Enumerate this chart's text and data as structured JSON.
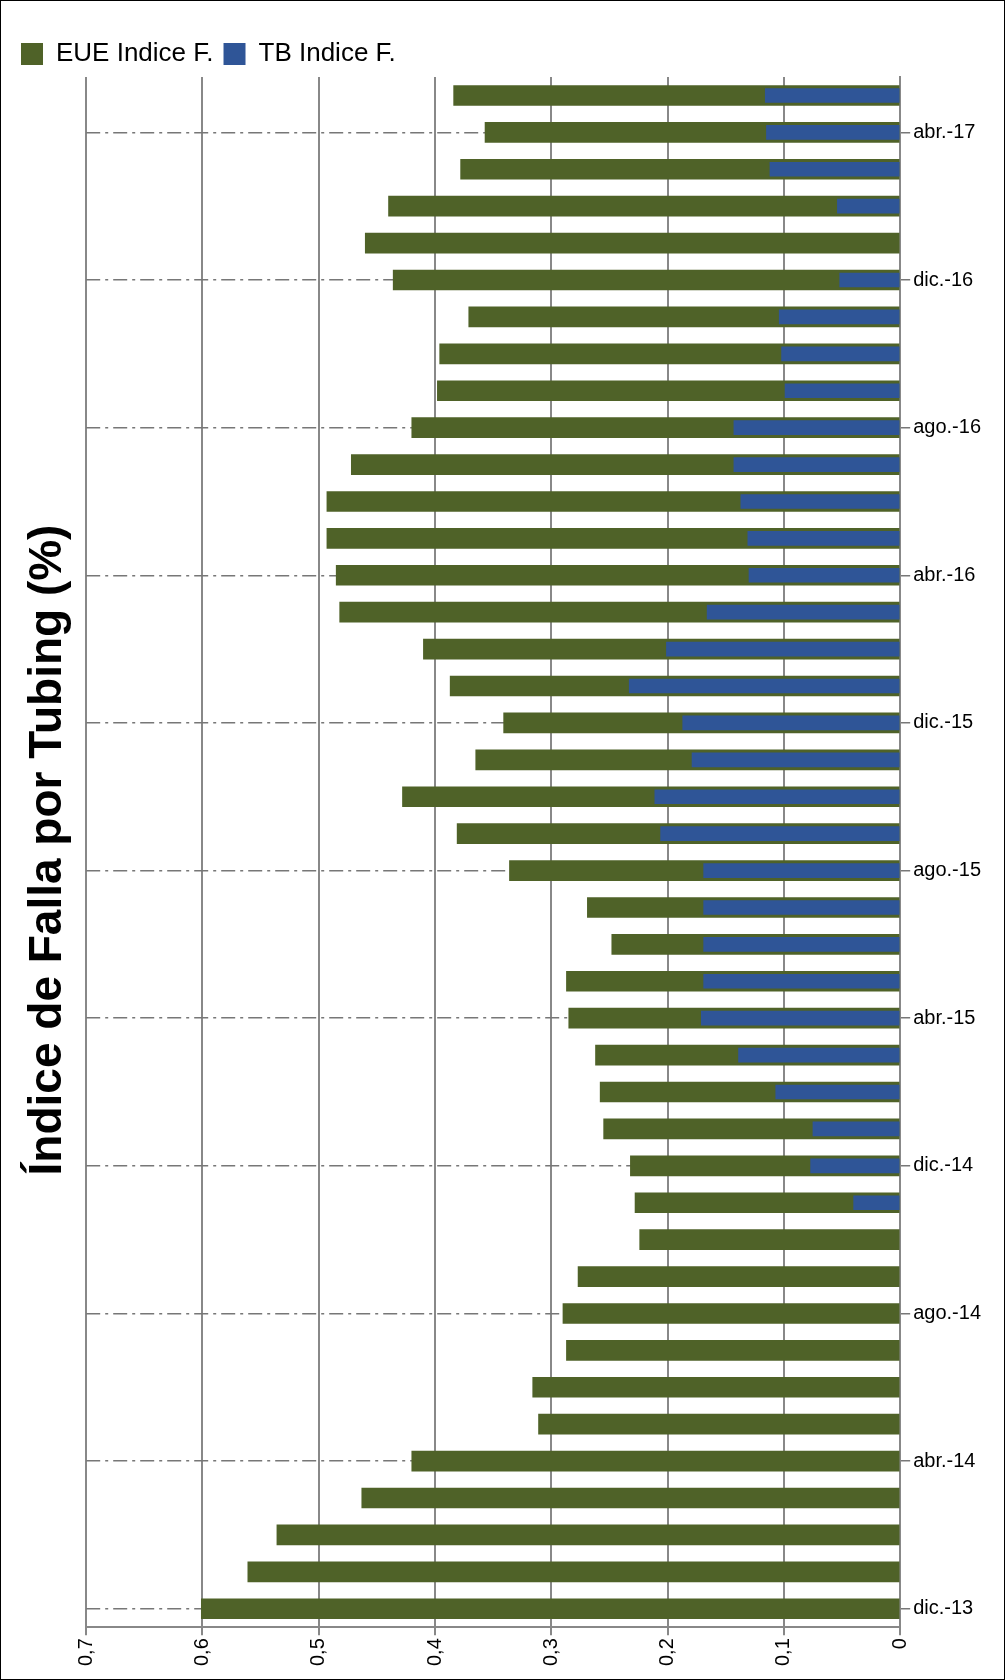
{
  "chart_data": {
    "type": "bar",
    "orientation": "horizontal",
    "title": "Índice de Falla por Tubing (%)",
    "categories": [
      null,
      "abr.-17",
      null,
      null,
      null,
      "dic.-16",
      null,
      null,
      null,
      "ago.-16",
      null,
      null,
      null,
      "abr.-16",
      null,
      null,
      null,
      "dic.-15",
      null,
      null,
      null,
      "ago.-15",
      null,
      null,
      null,
      "abr.-15",
      null,
      null,
      null,
      "dic.-14",
      null,
      null,
      null,
      "ago.-14",
      null,
      null,
      null,
      "abr.-14",
      null,
      null,
      null,
      "dic.-13"
    ],
    "series": [
      {
        "name": "EUE Indice F.",
        "color": "#4f6228",
        "values": [
          0.384,
          0.357,
          0.378,
          0.44,
          0.46,
          0.436,
          0.371,
          0.396,
          0.398,
          0.42,
          0.472,
          0.493,
          0.493,
          0.485,
          0.482,
          0.41,
          0.387,
          0.341,
          0.365,
          0.428,
          0.381,
          0.336,
          0.269,
          0.248,
          0.287,
          0.285,
          0.262,
          0.258,
          0.255,
          0.232,
          0.228,
          0.224,
          0.277,
          0.29,
          0.287,
          0.316,
          0.311,
          0.42,
          0.463,
          0.536,
          0.561,
          0.601
        ]
      },
      {
        "name": "TB Indice F.",
        "color": "#2f5597",
        "values": [
          0.116,
          0.115,
          0.112,
          0.054,
          null,
          0.052,
          0.104,
          0.102,
          0.099,
          0.143,
          0.143,
          0.137,
          0.131,
          0.13,
          0.166,
          0.201,
          0.233,
          0.187,
          0.179,
          0.211,
          0.206,
          0.169,
          0.169,
          0.169,
          0.169,
          0.171,
          0.139,
          0.107,
          0.075,
          0.077,
          0.04,
          null,
          null,
          null,
          null,
          null,
          null,
          null,
          null,
          null,
          null,
          null
        ]
      }
    ],
    "xlim": [
      0.7,
      0
    ],
    "xticks": [
      {
        "value": 0.7,
        "label": "0,7"
      },
      {
        "value": 0.6,
        "label": "0,6"
      },
      {
        "value": 0.5,
        "label": "0,5"
      },
      {
        "value": 0.4,
        "label": "0,4"
      },
      {
        "value": 0.3,
        "label": "0,3"
      },
      {
        "value": 0.2,
        "label": "0,2"
      },
      {
        "value": 0.1,
        "label": "0,1"
      },
      0
    ],
    "grid": true,
    "legend": "top left"
  }
}
